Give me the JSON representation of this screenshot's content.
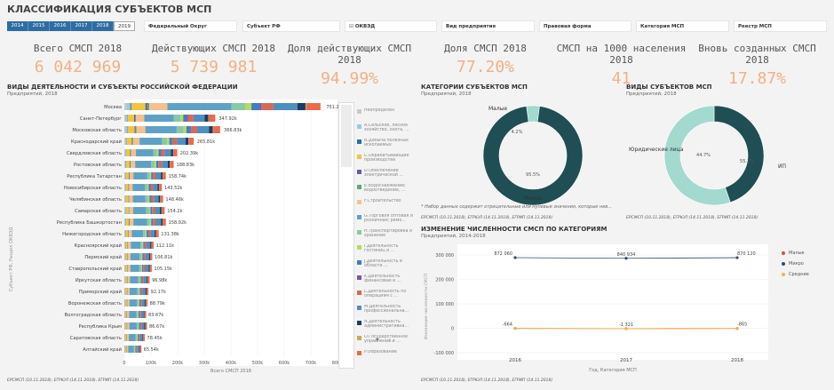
{
  "page_title": "КЛАССИФИКАЦИЯ СУБЪЕКТОВ МСП",
  "years": [
    "2014",
    "2015",
    "2016",
    "2017",
    "2018",
    "2019"
  ],
  "selected_year": "2019",
  "filters": {
    "federal_district": "Федеральный Округ",
    "subject": "Субъект РФ",
    "okved": "ОКВЭД",
    "activity": "Вид предприятия",
    "legal_form": "Правовая форма",
    "msp_category": "Категория МСП",
    "registry": "Реестр МСП"
  },
  "kpis": [
    {
      "label": "Всего СМСП 2018",
      "value": "6 042 969"
    },
    {
      "label": "Действующих СМСП 2018",
      "value": "5 739 981"
    },
    {
      "label": "Доля действующих СМСП 2018",
      "value": "94.99%"
    },
    {
      "label": "Доля СМСП 2018",
      "value": "77.20%"
    },
    {
      "label": "СМСП на 1000 населения 2018",
      "value": "41"
    },
    {
      "label": "Вновь созданных СМСП 2018",
      "value": "17.87%"
    }
  ],
  "bar_section": {
    "title": "ВИДЫ ДЕЯТЕЛЬНОСТИ И СУБЪЕКТЫ РОССИЙСКОЙ ФЕДЕРАЦИИ",
    "subtitle": "Предприятий, 2018",
    "source": "ЕРСМСП (10.11.2018), ЕГРЮЛ (14.11.2018), ЕГРИП (14.11.2018)"
  },
  "legend_items": [
    {
      "label": "Неопределен",
      "color": "#c9c9c9"
    },
    {
      "label": "A.Сельское, лесное хозяйство, охота, ...",
      "color": "#9bc7e0"
    },
    {
      "label": "B.Добыча полезных ископаемых",
      "color": "#2c6ea8"
    },
    {
      "label": "C.Обрабатывающие производства",
      "color": "#f1c542"
    },
    {
      "label": "D.Обеспечение электрической ...",
      "color": "#5d5fb0"
    },
    {
      "label": "E.Водоснабжение; водоотведение, ...",
      "color": "#5aa977"
    },
    {
      "label": "F.Строительство",
      "color": "#f5c08f"
    },
    {
      "label": "G.Торговля оптовая и розничная; ремо...",
      "color": "#5fa1c6"
    },
    {
      "label": "H.Транспортировка и хранение",
      "color": "#88c9a3"
    },
    {
      "label": "I.Деятельность гостиниц и ...",
      "color": "#b6d964"
    },
    {
      "label": "J.Деятельность в области ...",
      "color": "#3f7ec2"
    },
    {
      "label": "K.Деятельность финансовая и ...",
      "color": "#7c56a5"
    },
    {
      "label": "L.Деятельность по операциям с ...",
      "color": "#d66a57"
    },
    {
      "label": "M.Деятельность профессиональна...",
      "color": "#4f8fc0"
    },
    {
      "label": "N.Деятельность административна...",
      "color": "#1d3c63"
    },
    {
      "label": "O.Государственное управление и ...",
      "color": "#c8a85c"
    },
    {
      "label": "P.Образование",
      "color": "#ea6b4b"
    }
  ],
  "chart_data": [
    {
      "type": "bar",
      "title": "ВИДЫ ДЕЯТЕЛЬНОСТИ И СУБЪЕКТЫ РОССИЙСКОЙ ФЕДЕРАЦИИ",
      "subtitle": "Предприятий, 2018",
      "xlabel": "Всего СМСП 2018",
      "ylabel": "Субъект РФ, Раздел ОКВЭД",
      "xlim": [
        0,
        800000
      ],
      "xticks": [
        "0",
        "100k",
        "200k",
        "300k",
        "400k",
        "500k",
        "600k",
        "700k",
        "800k"
      ],
      "categories": [
        "Москва",
        "Санкт-Петербург",
        "Московская область",
        "Краснодарский край",
        "Свердловская область",
        "Ростовская область",
        "Республика Татарстан",
        "Новосибирская область",
        "Челябинская область",
        "Самарская область",
        "Республика Башкортостан",
        "Нижегородская область",
        "Красноярский край",
        "Пермский край",
        "Ставропольский край",
        "Иркутская область",
        "Приморский край",
        "Воронежская область",
        "Волгоградская область",
        "Республика Крым",
        "Саратовская область",
        "Алтайский край"
      ],
      "values": [
        751200,
        347920,
        366830,
        265810,
        202390,
        188830,
        158740,
        143520,
        148460,
        154200,
        158920,
        131380,
        112110,
        106810,
        105150,
        96980,
        92170,
        88790,
        83670,
        86670,
        78450,
        65540
      ],
      "value_labels": [
        "751.2k",
        "347.92k",
        "366.83k",
        "265.81k",
        "202.39k",
        "188.83k",
        "158.74k",
        "143.52k",
        "148.46k",
        "154.2k",
        "158.92k",
        "131.38k",
        "112.11k",
        "106.81k",
        "105.15k",
        "96.98k",
        "92.17k",
        "88.79k",
        "83.67k",
        "86.67k",
        "78.45k",
        "65.54k"
      ]
    },
    {
      "type": "pie",
      "title": "КАТЕГОРИИ СУБЪЕКТОВ МСП",
      "subtitle": "Предприятий, 2018",
      "categories": [
        "Малые",
        "Микро"
      ],
      "values": [
        4.2,
        95.5
      ],
      "value_labels": [
        "4.2%",
        "95.5%"
      ],
      "colors": [
        "#a3d9cf",
        "#1f4e54"
      ]
    },
    {
      "type": "pie",
      "title": "ВИДЫ СУБЪЕКТОВ МСП",
      "subtitle": "Предприятий, 2018",
      "categories": [
        "Юридические лица",
        "ИП"
      ],
      "values": [
        44.7,
        55.3
      ],
      "value_labels": [
        "44.7%",
        "55.3%"
      ],
      "colors": [
        "#1f4e54",
        "#a3d9cf"
      ]
    },
    {
      "type": "line",
      "title": "ИЗМЕНЕНИЕ ЧИСЛЕННОСТИ СМСП ПО КАТЕГОРИЯМ",
      "subtitle": "Предприятий, 2014-2018",
      "xlabel": "Год, Категория МСП",
      "ylabel": "Изменение численности СМСП",
      "x": [
        "2016",
        "2017",
        "2018"
      ],
      "ylim": [
        -100000,
        300000
      ],
      "yticks": [
        "300 000",
        "200 000",
        "100 000",
        "0",
        "-100 000"
      ],
      "series": [
        {
          "name": "Малые",
          "values": [
            -664,
            -1321,
            -865
          ],
          "labels": [
            "-664",
            "-1 321",
            "-865"
          ],
          "color": "#e24a3b"
        },
        {
          "name": "Микро",
          "values": [
            872060,
            840934,
            870120
          ],
          "labels": [
            "872 060",
            "840 934",
            "870 120"
          ],
          "color": "#2c4f6a"
        },
        {
          "name": "Средние",
          "values": [
            -664,
            -1321,
            -865
          ],
          "labels": [
            "",
            "",
            ""
          ],
          "color": "#f0b04a"
        }
      ]
    }
  ],
  "donut_note": "* Набор данных содержит отрицательные или нулевые значения, которые нев...",
  "donut_source": "ЕРСМСП (10.11.2018), ЕГРЮЛ (14.11.2018), ЕГРИП (14.11.2018)",
  "line_source": "ЕРСМСП (10.11.2018), ЕГРЮЛ (14.11.2018), ЕГРИП (14.11.2018)"
}
